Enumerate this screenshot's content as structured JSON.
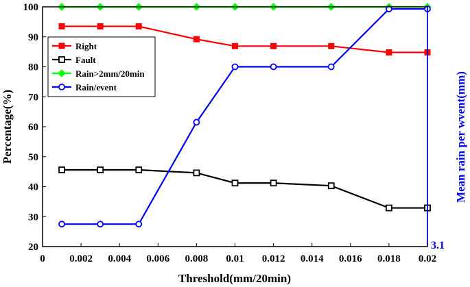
{
  "chart_data": {
    "type": "line",
    "xlabel": "Threshold(mm/20min)",
    "ylabel": "Percentage(%)",
    "y2label": "Mean rain per wvent(mm)",
    "y2_tick_visible": "3.1",
    "xlim": [
      0,
      0.02
    ],
    "ylim": [
      20,
      100
    ],
    "x_ticks": [
      "0",
      "0.002",
      "0.004",
      "0.006",
      "0.008",
      "0.01",
      "0.012",
      "0.014",
      "0.016",
      "0.018",
      "0.02"
    ],
    "y_ticks": [
      "20",
      "30",
      "40",
      "50",
      "60",
      "70",
      "80",
      "90",
      "100"
    ],
    "legend_position": "upper-left",
    "x": [
      0.001,
      0.003,
      0.005,
      0.008,
      0.01,
      0.012,
      0.015,
      0.018,
      0.02
    ],
    "series": [
      {
        "name": "Right",
        "color": "#ff0000",
        "marker": "square-filled",
        "axis": "left",
        "values": [
          93.5,
          93.5,
          93.5,
          89.2,
          86.9,
          86.9,
          86.9,
          84.8,
          84.8
        ]
      },
      {
        "name": "Fault",
        "color": "#000000",
        "marker": "square-open",
        "axis": "left",
        "values": [
          45.6,
          45.6,
          45.6,
          44.6,
          41.2,
          41.2,
          40.3,
          32.9,
          32.9
        ]
      },
      {
        "name": "Rain>2mm/20min",
        "color": "#00ff00",
        "marker": "diamond-filled",
        "axis": "left",
        "values": [
          100,
          100,
          100,
          100,
          100,
          100,
          100,
          100,
          100
        ]
      },
      {
        "name": "Rain/event",
        "color": "#0000ff",
        "marker": "circle-open",
        "axis": "right",
        "values_in_left_axis_units": [
          27.5,
          27.5,
          27.5,
          61.5,
          80,
          80,
          80,
          99.3,
          99.3
        ]
      }
    ]
  }
}
